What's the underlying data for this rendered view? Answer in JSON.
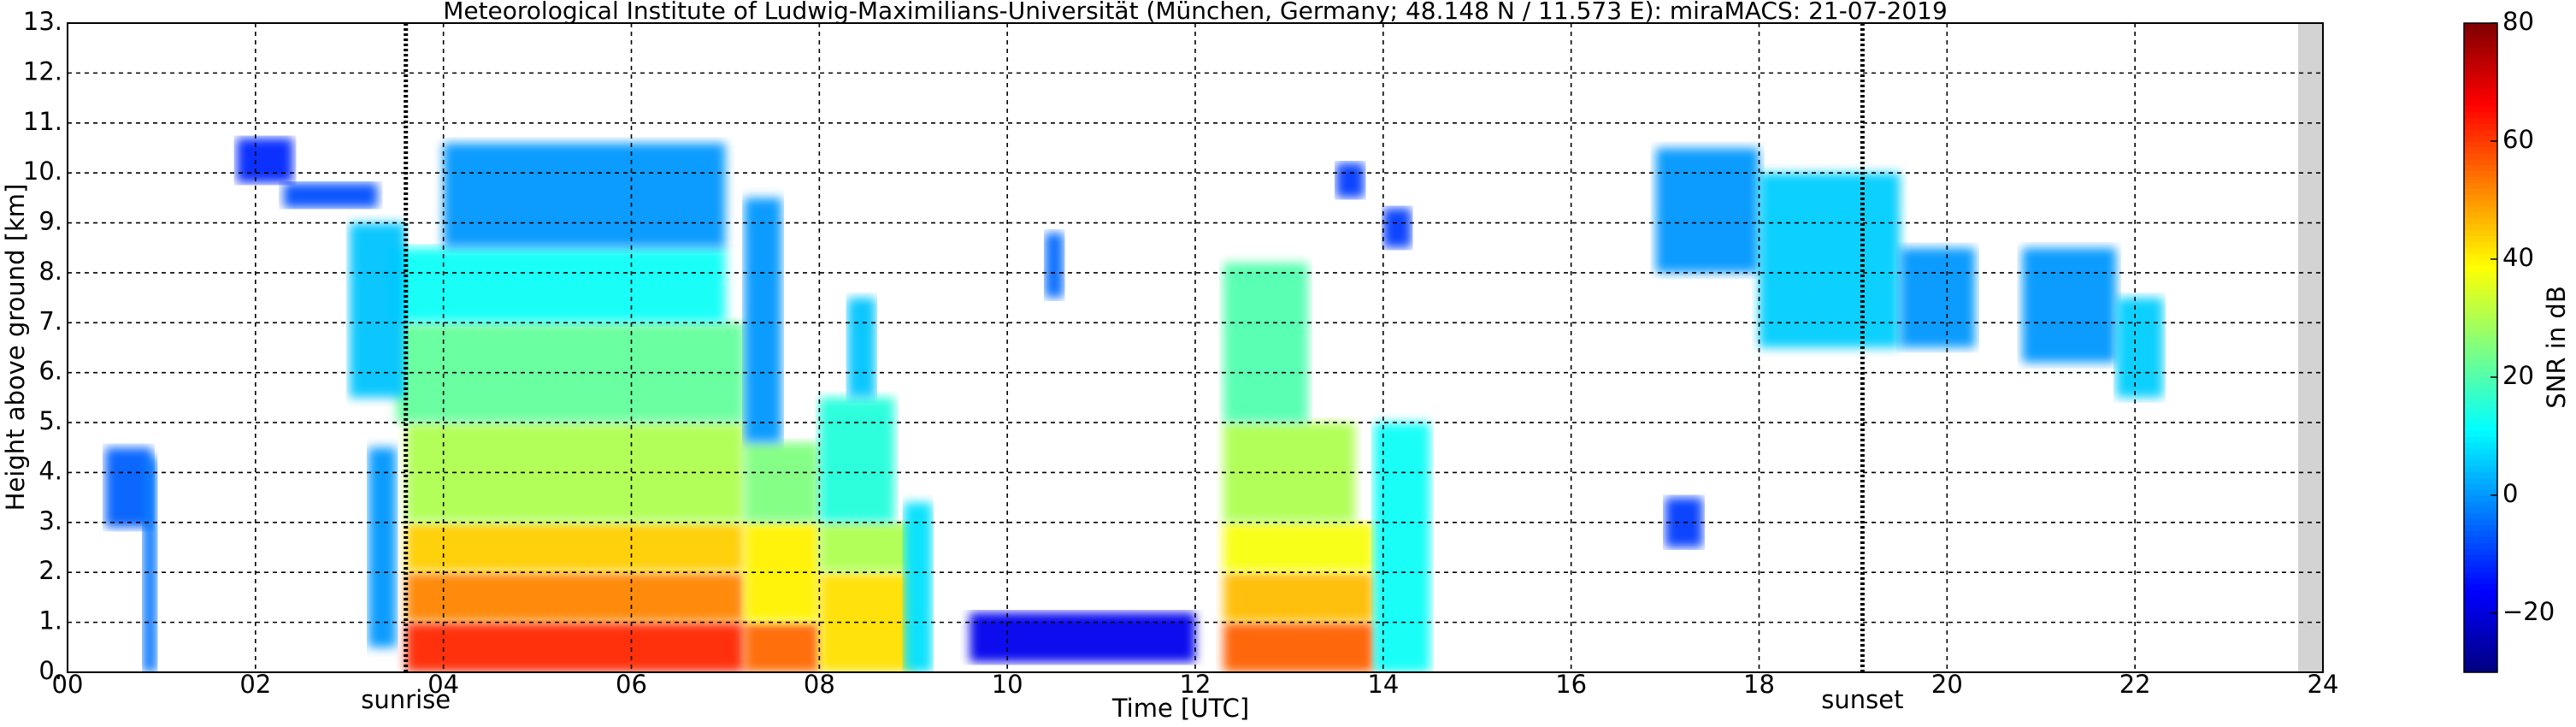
{
  "chart_data": {
    "type": "heatmap",
    "title": "Meteorological Institute of Ludwig-Maximilians-Universität (München, Germany; 48.148 N / 11.573 E):    miraMACS: 21-07-2019",
    "x_label": "Time [UTC]",
    "y_label": "Height above ground [km]",
    "colorbar_label": "SNR in dB",
    "colormap": "jet",
    "grid": true,
    "xlim": [
      0,
      24
    ],
    "ylim": [
      0,
      13
    ],
    "clim": [
      -30,
      80
    ],
    "xticks": [
      {
        "value": 0,
        "label": "00"
      },
      {
        "value": 2,
        "label": "02"
      },
      {
        "value": 4,
        "label": "04"
      },
      {
        "value": 6,
        "label": "06"
      },
      {
        "value": 8,
        "label": "08"
      },
      {
        "value": 10,
        "label": "10"
      },
      {
        "value": 12,
        "label": "12"
      },
      {
        "value": 14,
        "label": "14"
      },
      {
        "value": 16,
        "label": "16"
      },
      {
        "value": 18,
        "label": "18"
      },
      {
        "value": 20,
        "label": "20"
      },
      {
        "value": 22,
        "label": "22"
      },
      {
        "value": 24,
        "label": "24"
      }
    ],
    "yticks": [
      {
        "value": 0,
        "label": "0."
      },
      {
        "value": 1,
        "label": "1."
      },
      {
        "value": 2,
        "label": "2."
      },
      {
        "value": 3,
        "label": "3."
      },
      {
        "value": 4,
        "label": "4."
      },
      {
        "value": 5,
        "label": "5."
      },
      {
        "value": 6,
        "label": "6."
      },
      {
        "value": 7,
        "label": "7."
      },
      {
        "value": 8,
        "label": "8."
      },
      {
        "value": 9,
        "label": "9."
      },
      {
        "value": 10,
        "label": "10."
      },
      {
        "value": 11,
        "label": "11."
      },
      {
        "value": 12,
        "label": "12."
      },
      {
        "value": 13,
        "label": "13."
      }
    ],
    "cticks": [
      {
        "value": -20,
        "label": "−20"
      },
      0,
      20,
      40,
      60,
      80
    ],
    "annotations": [
      {
        "text": "sunrise",
        "x": 3.6
      },
      {
        "text": "sunset",
        "x": 19.1
      }
    ],
    "cells": [
      {
        "x": [
          3.6,
          7.2
        ],
        "y": [
          0,
          1
        ],
        "value": 62
      },
      {
        "x": [
          3.6,
          7.2
        ],
        "y": [
          1,
          2
        ],
        "value": 52
      },
      {
        "x": [
          3.6,
          7.2
        ],
        "y": [
          2,
          3
        ],
        "value": 44
      },
      {
        "x": [
          3.6,
          7.2
        ],
        "y": [
          3,
          5
        ],
        "value": 30
      },
      {
        "x": [
          3.5,
          7.2
        ],
        "y": [
          5,
          7
        ],
        "value": 22
      },
      {
        "x": [
          3.4,
          7.0
        ],
        "y": [
          7,
          8.5
        ],
        "value": 12
      },
      {
        "x": [
          4.0,
          7.0
        ],
        "y": [
          8.5,
          10.6
        ],
        "value": 0
      },
      {
        "x": [
          3.0,
          3.6
        ],
        "y": [
          5.5,
          9
        ],
        "value": 5
      },
      {
        "x": [
          2.3,
          3.3
        ],
        "y": [
          9.3,
          9.8
        ],
        "value": -8
      },
      {
        "x": [
          1.8,
          2.4
        ],
        "y": [
          9.8,
          10.7
        ],
        "value": -12
      },
      {
        "x": [
          3.2,
          3.5
        ],
        "y": [
          0.5,
          4.5
        ],
        "value": 0
      },
      {
        "x": [
          0.4,
          0.9
        ],
        "y": [
          2.9,
          4.5
        ],
        "value": -6
      },
      {
        "x": [
          0.8,
          0.95
        ],
        "y": [
          0,
          4.3
        ],
        "value": -4
      },
      {
        "x": [
          7.2,
          8.0
        ],
        "y": [
          0,
          1
        ],
        "value": 55
      },
      {
        "x": [
          7.2,
          8.0
        ],
        "y": [
          1,
          3
        ],
        "value": 40
      },
      {
        "x": [
          7.2,
          8.0
        ],
        "y": [
          3,
          4.6
        ],
        "value": 25
      },
      {
        "x": [
          7.2,
          7.6
        ],
        "y": [
          4.6,
          9.5
        ],
        "value": 0
      },
      {
        "x": [
          8.0,
          9.0
        ],
        "y": [
          0,
          2
        ],
        "value": 42
      },
      {
        "x": [
          8.0,
          9.0
        ],
        "y": [
          2,
          3
        ],
        "value": 30
      },
      {
        "x": [
          8.0,
          8.8
        ],
        "y": [
          3,
          5.5
        ],
        "value": 15
      },
      {
        "x": [
          8.3,
          8.6
        ],
        "y": [
          5.5,
          7.5
        ],
        "value": 5
      },
      {
        "x": [
          8.9,
          9.2
        ],
        "y": [
          0,
          3.4
        ],
        "value": 8
      },
      {
        "x": [
          10.4,
          10.6
        ],
        "y": [
          7.5,
          8.8
        ],
        "value": -5
      },
      {
        "x": [
          9.6,
          12.0
        ],
        "y": [
          0.2,
          1.2
        ],
        "value": -18
      },
      {
        "x": [
          12.3,
          13.9
        ],
        "y": [
          0,
          1
        ],
        "value": 56
      },
      {
        "x": [
          12.3,
          13.9
        ],
        "y": [
          1,
          2
        ],
        "value": 46
      },
      {
        "x": [
          12.3,
          13.9
        ],
        "y": [
          2,
          3
        ],
        "value": 38
      },
      {
        "x": [
          12.3,
          13.7
        ],
        "y": [
          3,
          5
        ],
        "value": 30
      },
      {
        "x": [
          12.3,
          13.2
        ],
        "y": [
          5,
          8.2
        ],
        "value": 20
      },
      {
        "x": [
          13.9,
          14.5
        ],
        "y": [
          0,
          5
        ],
        "value": 12
      },
      {
        "x": [
          14.0,
          14.3
        ],
        "y": [
          8.5,
          9.3
        ],
        "value": -10
      },
      {
        "x": [
          13.5,
          13.8
        ],
        "y": [
          9.5,
          10.2
        ],
        "value": -10
      },
      {
        "x": [
          16.9,
          18.0
        ],
        "y": [
          8,
          10.5
        ],
        "value": 0
      },
      {
        "x": [
          18.0,
          19.5
        ],
        "y": [
          6.5,
          10
        ],
        "value": 6
      },
      {
        "x": [
          19.5,
          20.3
        ],
        "y": [
          6.5,
          8.5
        ],
        "value": 0
      },
      {
        "x": [
          20.8,
          21.8
        ],
        "y": [
          6.2,
          8.5
        ],
        "value": 0
      },
      {
        "x": [
          21.8,
          22.3
        ],
        "y": [
          5.5,
          7.5
        ],
        "value": 6
      },
      {
        "x": [
          17.0,
          17.4
        ],
        "y": [
          2.5,
          3.5
        ],
        "value": -10
      }
    ]
  }
}
